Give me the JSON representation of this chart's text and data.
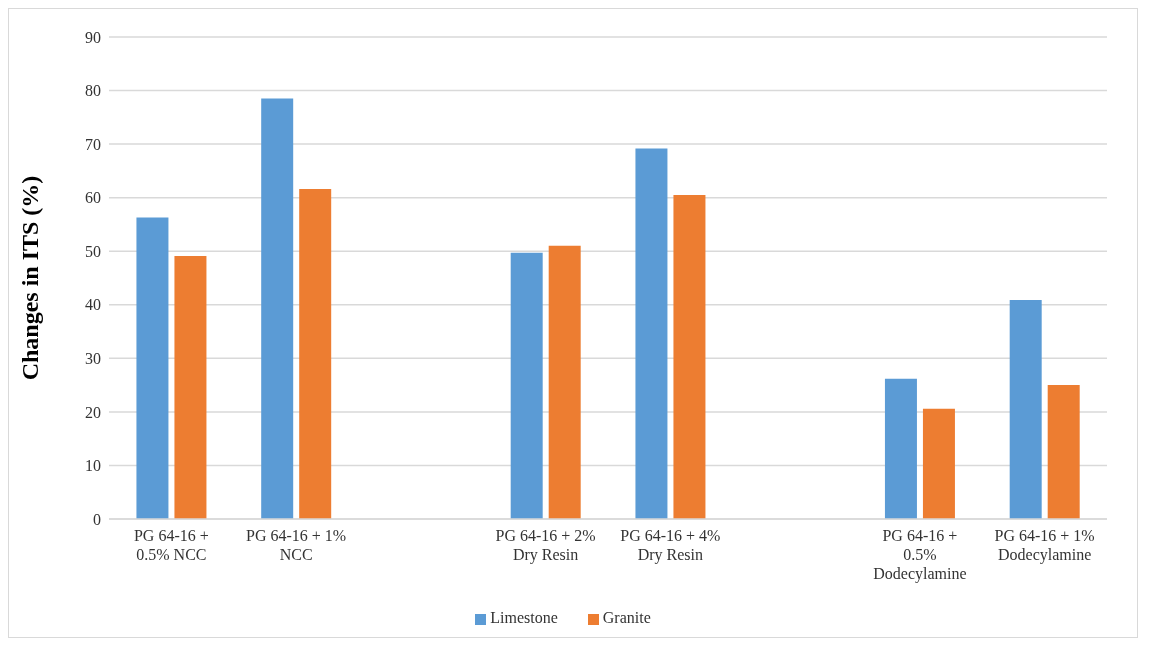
{
  "chart_data": {
    "type": "bar",
    "ylabel": "Changes in ITS (%)",
    "categories": [
      "PG 64-16 + 0.5% NCC",
      "PG 64-16 + 1% NCC",
      null,
      "PG 64-16 + 2% Dry Resin",
      "PG 64-16 + 4% Dry Resin",
      null,
      "PG 64-16 + 0.5% Dodecylamine",
      "PG 64-16 + 1% Dodecylamine"
    ],
    "series": [
      {
        "name": "Limestone",
        "color": "#5b9bd5",
        "values": [
          56.3,
          78.5,
          null,
          49.7,
          69.2,
          null,
          26.2,
          40.9
        ]
      },
      {
        "name": "Granite",
        "color": "#ed7d31",
        "values": [
          49.1,
          61.6,
          null,
          51.0,
          60.5,
          null,
          20.6,
          25.0
        ]
      }
    ],
    "ylim": [
      0,
      90
    ],
    "yticks": [
      0,
      10,
      20,
      30,
      40,
      50,
      60,
      70,
      80,
      90
    ],
    "grid": "y",
    "legend": "bottom"
  }
}
